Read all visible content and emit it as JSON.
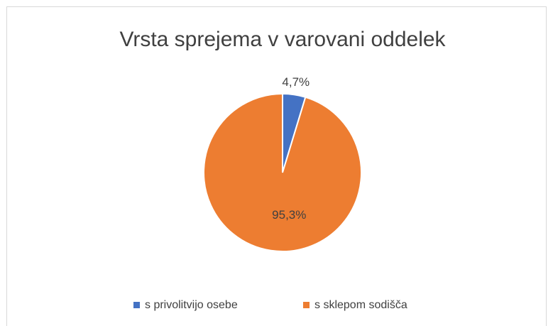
{
  "chart_data": {
    "type": "pie",
    "title": "Vrsta sprejema v varovani oddelek",
    "categories": [
      "s privolitvijo osebe",
      "s sklepom sodišča"
    ],
    "values": [
      4.7,
      95.3
    ],
    "value_labels": [
      "4,7%",
      "95,3%"
    ],
    "colors": [
      "#4472c4",
      "#ed7d31"
    ],
    "legend": "bottom"
  }
}
